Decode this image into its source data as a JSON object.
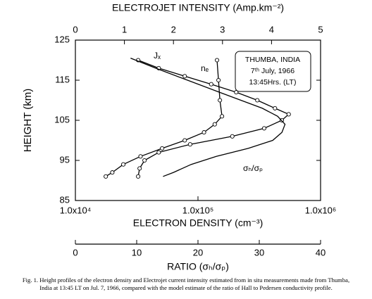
{
  "chart_data": {
    "type": "line",
    "ylabel": "HEIGHT (km)",
    "ylim": [
      85,
      125
    ],
    "yticks": [
      85,
      95,
      105,
      115,
      125
    ],
    "axes": [
      {
        "position": "top",
        "label": "ELECTROJET INTENSITY (Amp.km⁻²)",
        "lim": [
          0,
          5
        ],
        "ticks": [
          0,
          1,
          2,
          3,
          4,
          5
        ]
      },
      {
        "position": "bottom",
        "label": "ELECTRON DENSITY (cm⁻³)",
        "log": true,
        "lim": [
          10000,
          1000000
        ],
        "ticks": [
          {
            "value": 10000,
            "label": "1.0x10⁴"
          },
          {
            "value": 100000,
            "label": "1.0x10⁵"
          },
          {
            "value": 1000000,
            "label": "1.0x10⁶"
          }
        ]
      },
      {
        "position": "lower",
        "label": "RATIO (σₕ/σₚ)",
        "lim": [
          0,
          40
        ],
        "ticks": [
          0,
          10,
          20,
          30,
          40
        ]
      }
    ],
    "series": [
      {
        "name": "Jₓ",
        "axis": "top",
        "color": "#000",
        "marker": "circle",
        "x": [
          1.28,
          1.7,
          2.23,
          2.77,
          3.28,
          3.71,
          4.07,
          4.35,
          4.21,
          3.85,
          3.2,
          2.34,
          1.7,
          1.41,
          1.31,
          1.28
        ],
        "y": [
          120,
          118,
          116,
          114,
          112,
          110,
          108,
          106.5,
          105,
          103,
          101,
          99,
          97,
          95,
          93,
          91
        ]
      },
      {
        "name": "nₑ",
        "axis": "bottom",
        "color": "#000",
        "marker": "circle",
        "x": [
          143000,
          147000,
          151000,
          157000,
          137000,
          112000,
          78000,
          51000,
          34000,
          24600,
          20000,
          17700
        ],
        "y": [
          120,
          115,
          110,
          106,
          104,
          102,
          100,
          98,
          96,
          94,
          92,
          91
        ]
      },
      {
        "name": "σₕ/σₚ",
        "axis": "lower",
        "color": "#000",
        "x": [
          9.0,
          13.1,
          18.3,
          23.5,
          27.0,
          30.5,
          33.0,
          34.2,
          33.7,
          32.2,
          28.2,
          23.0,
          18.9,
          16.0,
          14.3
        ],
        "y": [
          120.5,
          118,
          115,
          112,
          110,
          108,
          106,
          104,
          102,
          100,
          98,
          96,
          94,
          92,
          91
        ]
      }
    ],
    "annotation": [
      "THUMBA, INDIA",
      "7ᵗʰ July, 1966",
      "13:45Hrs. (LT)"
    ],
    "caption": [
      "Fig. 1. Height profiles of the electron density and Electrojet current intensity estimated from in situ measurements made from Thumba,",
      "India at 13:45 LT on Jul. 7, 1966, compared with the model estimate of the ratio of Hall to Pedersen conductivity profile."
    ]
  }
}
